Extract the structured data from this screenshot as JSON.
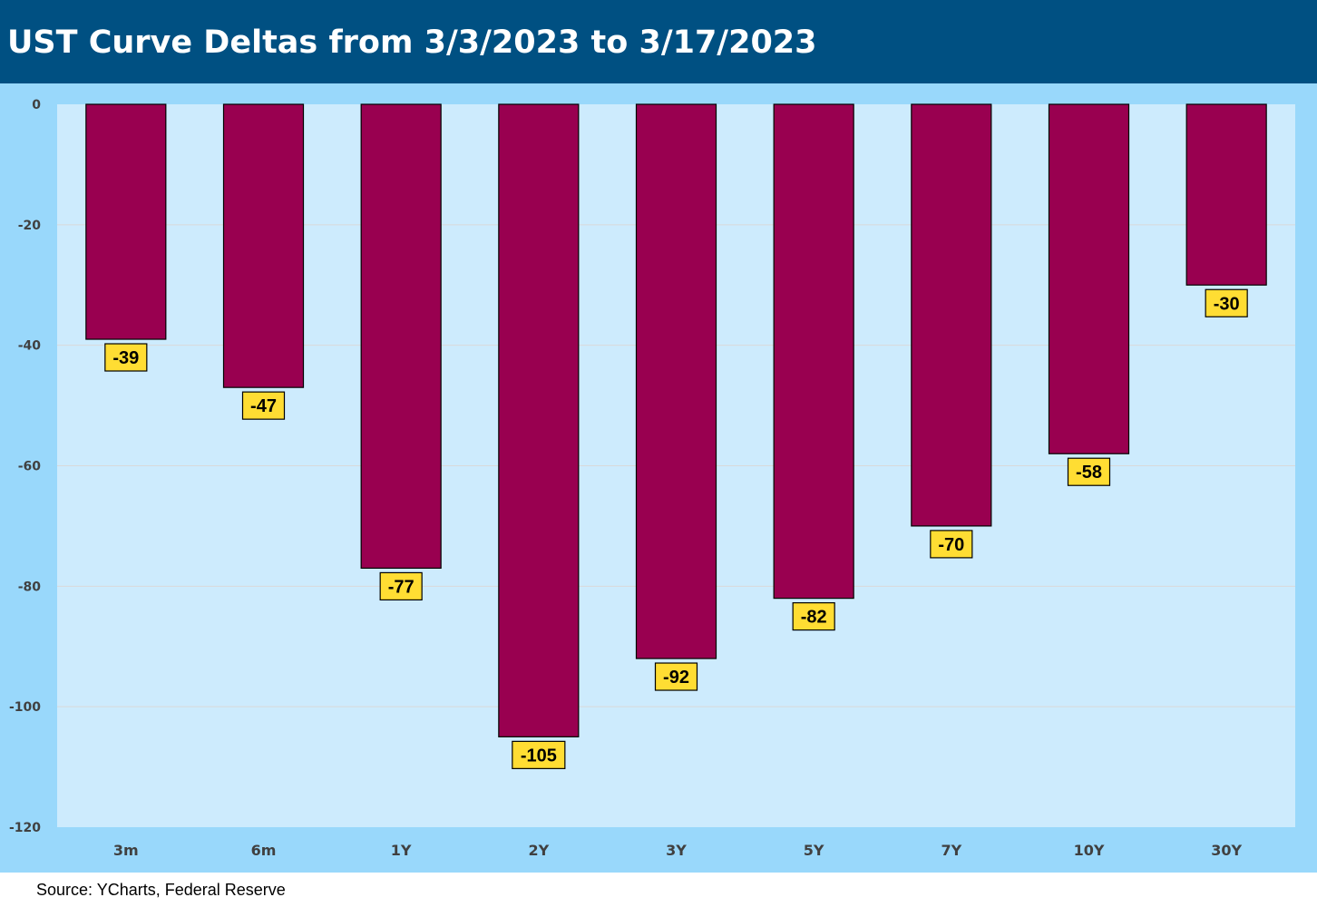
{
  "header": {
    "title": "UST Curve Deltas from 3/3/2023 to 3/17/2023"
  },
  "footer": {
    "source": "Source: YCharts, Federal Reserve"
  },
  "colors": {
    "header_bg": "#005082",
    "chart_bg": "#99d8fb",
    "plot_bg": "#cdebfd",
    "bar_fill": "#990050",
    "label_fill": "#ffdd33",
    "gridline": "#d9d9d9"
  },
  "chart_data": {
    "type": "bar",
    "title": "UST Curve Deltas from 3/3/2023 to 3/17/2023",
    "xlabel": "",
    "ylabel": "",
    "categories": [
      "3m",
      "6m",
      "1Y",
      "2Y",
      "3Y",
      "5Y",
      "7Y",
      "10Y",
      "30Y"
    ],
    "values": [
      -39,
      -47,
      -77,
      -105,
      -92,
      -82,
      -70,
      -58,
      -30
    ],
    "ylim": [
      -120,
      0
    ],
    "yticks": [
      0,
      -20,
      -40,
      -60,
      -80,
      -100,
      -120
    ],
    "grid": true,
    "legend": "none",
    "data_labels": true
  }
}
